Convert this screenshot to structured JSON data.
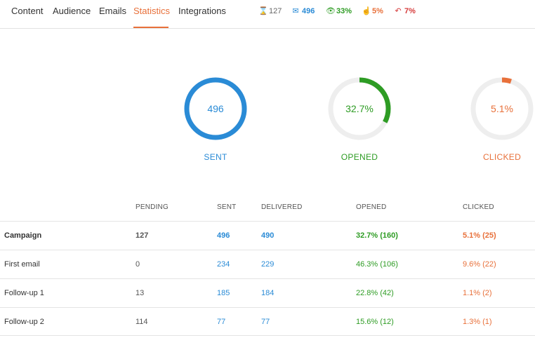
{
  "nav": {
    "tabs": [
      {
        "label": "Content"
      },
      {
        "label": "Audience"
      },
      {
        "label": "Emails"
      },
      {
        "label": "Statistics",
        "active": true
      },
      {
        "label": "Integrations"
      }
    ]
  },
  "summary": {
    "pending": "127",
    "sent": "496",
    "opened": "33%",
    "clicked": "5%",
    "replied": "7%"
  },
  "colors": {
    "accent": "#e8703a",
    "sent": "#2a8bd6",
    "opened": "#2e9c24",
    "clicked": "#e8703a",
    "replied": "#d63c3c",
    "track": "#eeeeee"
  },
  "donuts": [
    {
      "value": "496",
      "label": "SENT",
      "fraction": 1.0,
      "color": "#2a8bd6"
    },
    {
      "value": "32.7%",
      "label": "OPENED",
      "fraction": 0.327,
      "color": "#2e9c24"
    },
    {
      "value": "5.1%",
      "label": "CLICKED",
      "fraction": 0.051,
      "color": "#e8703a"
    }
  ],
  "table": {
    "headers": [
      "PENDING",
      "SENT",
      "DELIVERED",
      "OPENED",
      "CLICKED"
    ],
    "rows": [
      {
        "name": "Campaign",
        "pending": "127",
        "sent": "496",
        "delivered": "490",
        "opened": "32.7% (160)",
        "clicked": "5.1% (25)"
      },
      {
        "name": "First email",
        "pending": "0",
        "sent": "234",
        "delivered": "229",
        "opened": "46.3% (106)",
        "clicked": "9.6% (22)"
      },
      {
        "name": "Follow-up 1",
        "pending": "13",
        "sent": "185",
        "delivered": "184",
        "opened": "22.8% (42)",
        "clicked": "1.1% (2)"
      },
      {
        "name": "Follow-up 2",
        "pending": "114",
        "sent": "77",
        "delivered": "77",
        "opened": "15.6% (12)",
        "clicked": "1.3% (1)"
      }
    ]
  }
}
